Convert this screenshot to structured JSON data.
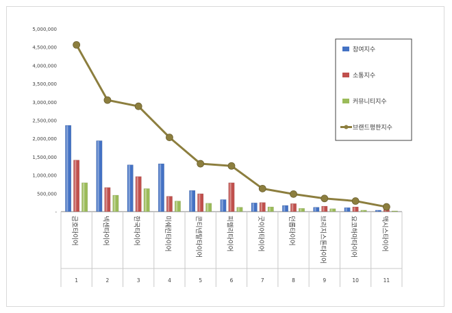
{
  "chart_data": {
    "type": "bar+line",
    "title": "",
    "xlabel": "",
    "ylabel": "",
    "ylim": [
      0,
      5000000
    ],
    "y_ticks": [
      "-",
      "500,000",
      "1,000,000",
      "1,500,000",
      "2,000,000",
      "2,500,000",
      "3,000,000",
      "3,500,000",
      "4,000,000",
      "4,500,000",
      "5,000,000"
    ],
    "categories": [
      "금호타이어",
      "넥센타이어",
      "한국타이어",
      "미쉐린타이어",
      "콘티넨탈타이어",
      "피렐리타이어",
      "굿이어타이어",
      "던롭타이어",
      "브리지스톤타이어",
      "요코하마타이어",
      "맥시스타이어"
    ],
    "ranks": [
      "1",
      "2",
      "3",
      "4",
      "5",
      "6",
      "7",
      "8",
      "9",
      "10",
      "11"
    ],
    "series": [
      {
        "name": "참여지수",
        "kind": "bar",
        "color": "#4472c4",
        "values": [
          2360000,
          1940000,
          1280000,
          1310000,
          580000,
          330000,
          240000,
          170000,
          120000,
          110000,
          40000
        ]
      },
      {
        "name": "소통지수",
        "kind": "bar",
        "color": "#c0504d",
        "values": [
          1410000,
          660000,
          960000,
          420000,
          490000,
          790000,
          250000,
          220000,
          150000,
          130000,
          60000
        ]
      },
      {
        "name": "커뮤니티지수",
        "kind": "bar",
        "color": "#9bbb59",
        "values": [
          790000,
          450000,
          630000,
          290000,
          230000,
          120000,
          130000,
          90000,
          80000,
          40000,
          20000
        ]
      },
      {
        "name": "브랜드평판지수",
        "kind": "line",
        "color": "#8c7e3e",
        "values": [
          4560000,
          3050000,
          2880000,
          2030000,
          1310000,
          1250000,
          630000,
          480000,
          360000,
          290000,
          130000
        ]
      }
    ],
    "grid": false,
    "legend_position": "right"
  }
}
